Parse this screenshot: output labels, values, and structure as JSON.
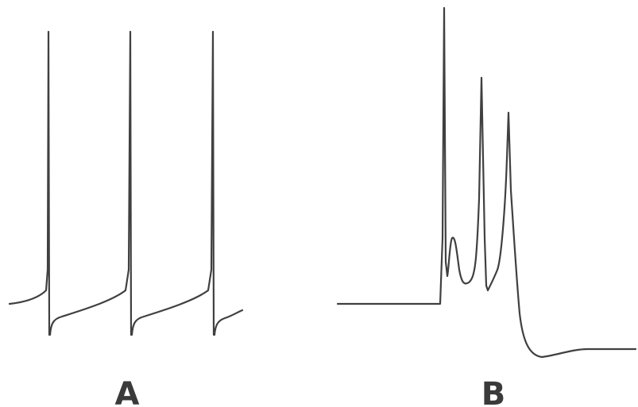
{
  "panels": [
    {
      "label": "A",
      "trace": "regular-spiking-train"
    },
    {
      "label": "B",
      "trace": "burst-with-afterhyperpolarization"
    }
  ]
}
